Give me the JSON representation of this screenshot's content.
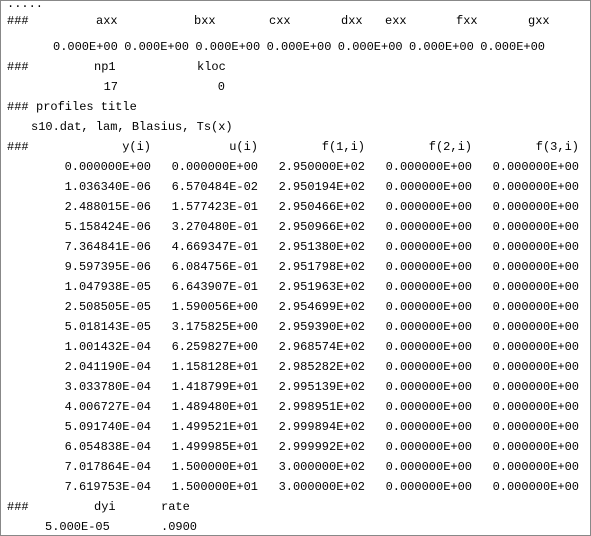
{
  "dots": ".....",
  "coefficients": {
    "marker": "###",
    "labels": [
      "axx",
      "bxx",
      "cxx",
      "dxx",
      "exx",
      "fxx",
      "gxx"
    ],
    "values": [
      "0.000E+00",
      "0.000E+00",
      "0.000E+00",
      "0.000E+00",
      "0.000E+00",
      "0.000E+00",
      "0.000E+00"
    ]
  },
  "grid": {
    "marker": "###",
    "labels": [
      "np1",
      "kloc"
    ],
    "values": [
      "17",
      "0"
    ]
  },
  "profiles": {
    "marker": "###",
    "title": "profiles title",
    "description": "s10.dat, lam, Blasius, Ts(x)"
  },
  "table": {
    "marker": "###",
    "columns": [
      "y(i)",
      "u(i)",
      "f(1,i)",
      "f(2,i)",
      "f(3,i)"
    ],
    "rows": [
      [
        "0.000000E+00",
        "0.000000E+00",
        "2.950000E+02",
        "0.000000E+00",
        "0.000000E+00"
      ],
      [
        "1.036340E-06",
        "6.570484E-02",
        "2.950194E+02",
        "0.000000E+00",
        "0.000000E+00"
      ],
      [
        "2.488015E-06",
        "1.577423E-01",
        "2.950466E+02",
        "0.000000E+00",
        "0.000000E+00"
      ],
      [
        "5.158424E-06",
        "3.270480E-01",
        "2.950966E+02",
        "0.000000E+00",
        "0.000000E+00"
      ],
      [
        "7.364841E-06",
        "4.669347E-01",
        "2.951380E+02",
        "0.000000E+00",
        "0.000000E+00"
      ],
      [
        "9.597395E-06",
        "6.084756E-01",
        "2.951798E+02",
        "0.000000E+00",
        "0.000000E+00"
      ],
      [
        "1.047938E-05",
        "6.643907E-01",
        "2.951963E+02",
        "0.000000E+00",
        "0.000000E+00"
      ],
      [
        "2.508505E-05",
        "1.590056E+00",
        "2.954699E+02",
        "0.000000E+00",
        "0.000000E+00"
      ],
      [
        "5.018143E-05",
        "3.175825E+00",
        "2.959390E+02",
        "0.000000E+00",
        "0.000000E+00"
      ],
      [
        "1.001432E-04",
        "6.259827E+00",
        "2.968574E+02",
        "0.000000E+00",
        "0.000000E+00"
      ],
      [
        "2.041190E-04",
        "1.158128E+01",
        "2.985282E+02",
        "0.000000E+00",
        "0.000000E+00"
      ],
      [
        "3.033780E-04",
        "1.418799E+01",
        "2.995139E+02",
        "0.000000E+00",
        "0.000000E+00"
      ],
      [
        "4.006727E-04",
        "1.489480E+01",
        "2.998951E+02",
        "0.000000E+00",
        "0.000000E+00"
      ],
      [
        "5.091740E-04",
        "1.499521E+01",
        "2.999894E+02",
        "0.000000E+00",
        "0.000000E+00"
      ],
      [
        "6.054838E-04",
        "1.499985E+01",
        "2.999992E+02",
        "0.000000E+00",
        "0.000000E+00"
      ],
      [
        "7.017864E-04",
        "1.500000E+01",
        "3.000000E+02",
        "0.000000E+00",
        "0.000000E+00"
      ],
      [
        "7.619753E-04",
        "1.500000E+01",
        "3.000000E+02",
        "0.000000E+00",
        "0.000000E+00"
      ]
    ]
  },
  "footer": {
    "marker": "###",
    "labels": [
      "dyi",
      "rate"
    ],
    "values": [
      "5.000E-05",
      ".0900"
    ]
  }
}
